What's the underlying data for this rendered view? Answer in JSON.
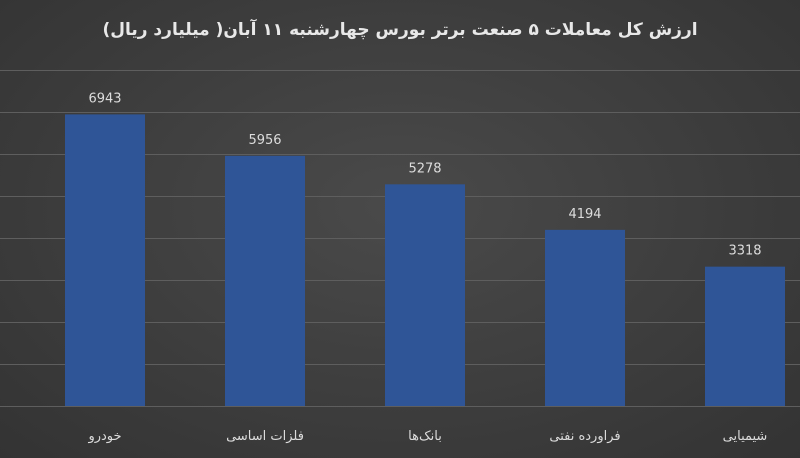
{
  "chart_data": {
    "type": "bar",
    "title": "ارزش کل معاملات ۵ صنعت برتر بورس چهارشنبه ۱۱ آبان( میلیارد ریال)",
    "categories": [
      "خودرو",
      "فلزات اساسی",
      "بانک‌ها",
      "فراورده نفتی",
      "شیمیایی"
    ],
    "values": [
      6943,
      5956,
      5278,
      4194,
      3318
    ],
    "ylim": [
      0,
      8000
    ],
    "grid": true,
    "colors": {
      "bar": "#2f5597",
      "background": "#404040"
    }
  }
}
